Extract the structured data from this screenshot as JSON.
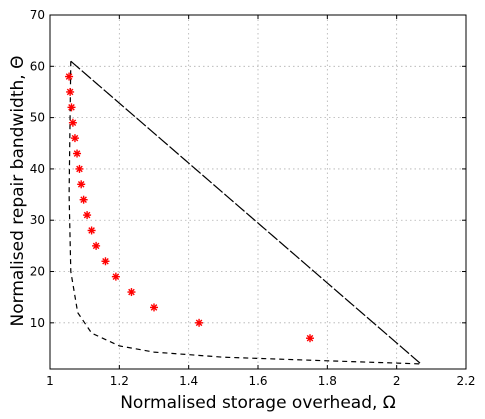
{
  "chart_data": {
    "type": "scatter",
    "title": "",
    "xlabel": "Normalised storage overhead, Ω",
    "ylabel": "Normalised repair bandwidth, Θ",
    "xlim": [
      1,
      2.2
    ],
    "ylim": [
      1,
      70
    ],
    "xticks": [
      1,
      1.2,
      1.4,
      1.6,
      1.8,
      2,
      2.2
    ],
    "yticks": [
      10,
      20,
      30,
      40,
      50,
      60,
      70
    ],
    "xtick_labels": [
      "1",
      "1.2",
      "1.4",
      "1.6",
      "1.8",
      "2",
      "2.2"
    ],
    "ytick_labels": [
      "10",
      "20",
      "30",
      "40",
      "50",
      "60",
      "70"
    ],
    "grid": true,
    "series": [
      {
        "style": "red-asterisk",
        "color": "#ff0000",
        "points": [
          {
            "x": 1.055,
            "y": 58
          },
          {
            "x": 1.058,
            "y": 55
          },
          {
            "x": 1.062,
            "y": 52
          },
          {
            "x": 1.066,
            "y": 49
          },
          {
            "x": 1.072,
            "y": 46
          },
          {
            "x": 1.078,
            "y": 43
          },
          {
            "x": 1.085,
            "y": 40
          },
          {
            "x": 1.09,
            "y": 37
          },
          {
            "x": 1.097,
            "y": 34
          },
          {
            "x": 1.107,
            "y": 31
          },
          {
            "x": 1.12,
            "y": 28
          },
          {
            "x": 1.133,
            "y": 25
          },
          {
            "x": 1.16,
            "y": 22
          },
          {
            "x": 1.19,
            "y": 19
          },
          {
            "x": 1.235,
            "y": 16
          },
          {
            "x": 1.3,
            "y": 13
          },
          {
            "x": 1.43,
            "y": 10
          },
          {
            "x": 1.75,
            "y": 7
          }
        ]
      },
      {
        "style": "dash-dot",
        "color": "#000000",
        "points": [
          {
            "x": 1.06,
            "y": 61
          },
          {
            "x": 2.07,
            "y": 2
          },
          {
            "x": 1.06,
            "y": 61
          }
        ]
      },
      {
        "style": "dashed",
        "color": "#000000",
        "points": [
          {
            "x": 1.06,
            "y": 61
          },
          {
            "x": 1.055,
            "y": 35
          },
          {
            "x": 1.06,
            "y": 20
          },
          {
            "x": 1.08,
            "y": 12
          },
          {
            "x": 1.12,
            "y": 8
          },
          {
            "x": 1.2,
            "y": 5.5
          },
          {
            "x": 1.3,
            "y": 4.3
          },
          {
            "x": 1.5,
            "y": 3.3
          },
          {
            "x": 1.8,
            "y": 2.6
          },
          {
            "x": 2.07,
            "y": 2
          }
        ]
      }
    ]
  }
}
